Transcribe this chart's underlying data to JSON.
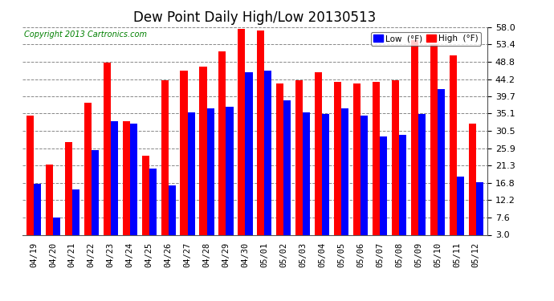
{
  "title": "Dew Point Daily High/Low 20130513",
  "copyright": "Copyright 2013 Cartronics.com",
  "dates": [
    "04/19",
    "04/20",
    "04/21",
    "04/22",
    "04/23",
    "04/24",
    "04/25",
    "04/26",
    "04/27",
    "04/28",
    "04/29",
    "04/30",
    "05/01",
    "05/02",
    "05/03",
    "05/04",
    "05/05",
    "05/06",
    "05/07",
    "05/08",
    "05/09",
    "05/10",
    "05/11",
    "05/12"
  ],
  "low_values": [
    16.5,
    7.5,
    15.0,
    25.5,
    33.0,
    32.5,
    20.5,
    16.0,
    35.5,
    36.5,
    37.0,
    46.0,
    46.5,
    38.5,
    35.5,
    35.0,
    36.5,
    34.5,
    29.0,
    29.5,
    35.0,
    41.5,
    18.5,
    17.0
  ],
  "high_values": [
    34.5,
    21.5,
    27.5,
    38.0,
    48.5,
    33.0,
    24.0,
    44.0,
    46.5,
    47.5,
    51.5,
    57.5,
    57.0,
    43.0,
    44.0,
    46.0,
    43.5,
    43.0,
    43.5,
    44.0,
    54.5,
    53.5,
    50.5,
    32.5
  ],
  "ylim": [
    3.0,
    58.0
  ],
  "yticks": [
    3.0,
    7.6,
    12.2,
    16.8,
    21.3,
    25.9,
    30.5,
    35.1,
    39.7,
    44.2,
    48.8,
    53.4,
    58.0
  ],
  "low_color": "#0000ff",
  "high_color": "#ff0000",
  "bg_color": "#ffffff",
  "grid_color": "#888888",
  "bar_width": 0.38,
  "legend_low_label": "Low  (°F)",
  "legend_high_label": "High  (°F)"
}
